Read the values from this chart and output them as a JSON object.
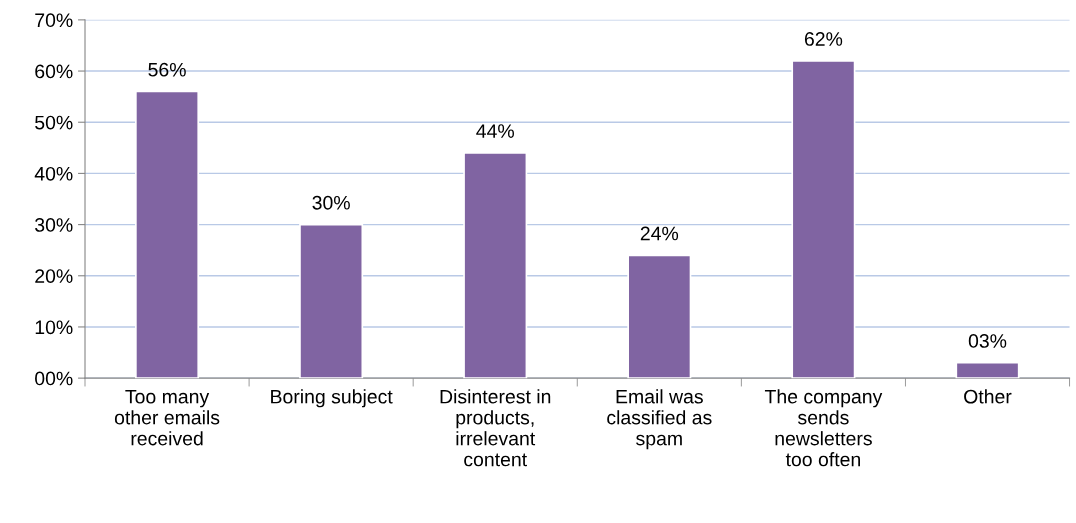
{
  "chart_data": {
    "type": "bar",
    "categories": [
      "Too many\nother emails\nreceived",
      "Boring subject",
      "Disinterest in\nproducts,\nirrelevant\ncontent",
      "Email was\nclassified as\nspam",
      "The company\nsends\nnewsletters\ntoo often",
      "Other"
    ],
    "values": [
      56,
      30,
      44,
      24,
      62,
      3
    ],
    "value_labels": [
      "56%",
      "30%",
      "44%",
      "24%",
      "62%",
      "03%"
    ],
    "color": "#8064a2",
    "ylim": [
      0,
      70
    ],
    "yticks": [
      {
        "value": 0,
        "label": "00%"
      },
      {
        "value": 10,
        "label": "10%"
      },
      {
        "value": 20,
        "label": "20%"
      },
      {
        "value": 30,
        "label": "30%"
      },
      {
        "value": 40,
        "label": "40%"
      },
      {
        "value": 50,
        "label": "50%"
      },
      {
        "value": 60,
        "label": "60%"
      },
      {
        "value": 70,
        "label": "70%"
      }
    ],
    "grid": "y",
    "legend": false
  }
}
